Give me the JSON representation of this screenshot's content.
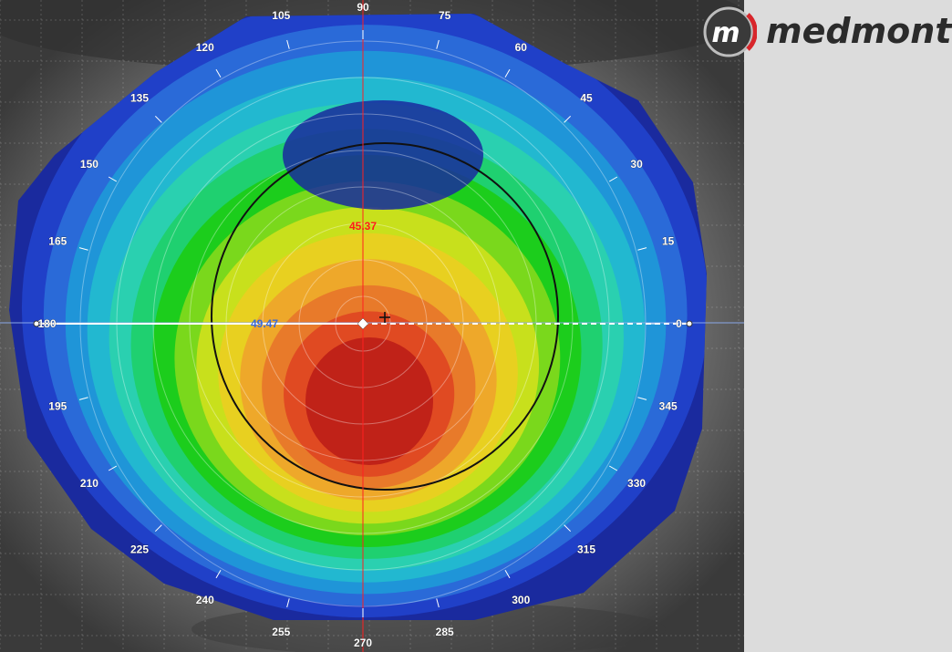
{
  "brand": {
    "name": "medmont",
    "logo_letter": "m"
  },
  "axis_angles": [
    {
      "label": "0",
      "deg": 0
    },
    {
      "label": "15",
      "deg": 15
    },
    {
      "label": "30",
      "deg": 30
    },
    {
      "label": "45",
      "deg": 45
    },
    {
      "label": "60",
      "deg": 60
    },
    {
      "label": "75",
      "deg": 75
    },
    {
      "label": "90",
      "deg": 90
    },
    {
      "label": "105",
      "deg": 105
    },
    {
      "label": "120",
      "deg": 120
    },
    {
      "label": "135",
      "deg": 135
    },
    {
      "label": "150",
      "deg": 150
    },
    {
      "label": "165",
      "deg": 165
    },
    {
      "label": "180",
      "deg": 180
    },
    {
      "label": "195",
      "deg": 195
    },
    {
      "label": "210",
      "deg": 210
    },
    {
      "label": "225",
      "deg": 225
    },
    {
      "label": "240",
      "deg": 240
    },
    {
      "label": "255",
      "deg": 255
    },
    {
      "label": "270",
      "deg": 270
    },
    {
      "label": "285",
      "deg": 285
    },
    {
      "label": "300",
      "deg": 300
    },
    {
      "label": "315",
      "deg": 315
    },
    {
      "label": "330",
      "deg": 330
    },
    {
      "label": "345",
      "deg": 345
    }
  ],
  "readings": {
    "upper": "45.37",
    "left": "49.47"
  },
  "colors": {
    "scale": [
      "#1a2a9e",
      "#2040c8",
      "#2a6ad8",
      "#1f95d8",
      "#22b8d0",
      "#2ad0b0",
      "#1fd070",
      "#1ccd1c",
      "#7ad81c",
      "#c8e01c",
      "#e8d020",
      "#eea82a",
      "#e87a2a",
      "#e04a22",
      "#c02218"
    ],
    "meridian": "#ff2020",
    "reading_red": "#ff1a1a",
    "reading_blue": "#3a6ad8"
  }
}
